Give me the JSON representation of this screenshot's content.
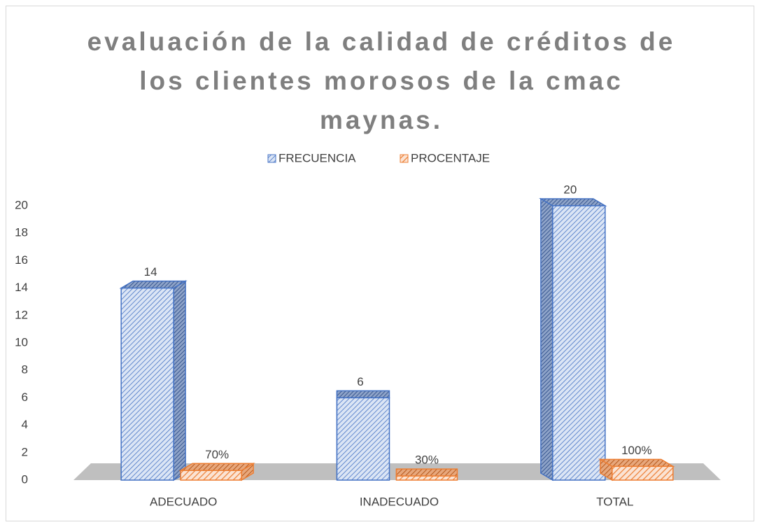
{
  "chart_data": {
    "type": "bar3d",
    "title": "evaluación de la calidad de créditos de los clientes morosos de la cmac maynas.",
    "categories": [
      "ADECUADO",
      "INADECUADO",
      "TOTAL"
    ],
    "series": [
      {
        "name": "FRECUENCIA",
        "color": "#4472c4",
        "values": [
          14,
          6,
          20
        ],
        "value_labels": [
          "14",
          "6",
          "20"
        ]
      },
      {
        "name": "PROCENTAJE",
        "color": "#ed7d31",
        "values": [
          0.7,
          0.3,
          1
        ],
        "value_labels": [
          "70%",
          "30%",
          "100%"
        ]
      }
    ],
    "ylim": [
      0,
      20
    ],
    "yticks": [
      0,
      2,
      4,
      6,
      8,
      10,
      12,
      14,
      16,
      18,
      20
    ],
    "grid": false,
    "legend": "top"
  }
}
